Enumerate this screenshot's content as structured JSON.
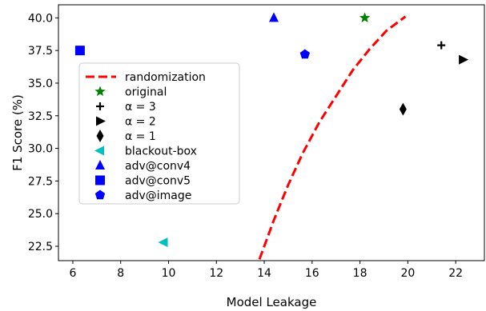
{
  "chart_data": {
    "type": "scatter",
    "xlabel": "Model Leakage",
    "ylabel": "F1 Score (%)",
    "xlim": [
      5.4,
      23.2
    ],
    "ylim": [
      21.4,
      41.0
    ],
    "xticks": [
      6,
      8,
      10,
      12,
      14,
      16,
      18,
      20,
      22
    ],
    "yticks": [
      22.5,
      25.0,
      27.5,
      30.0,
      32.5,
      35.0,
      37.5,
      40.0
    ],
    "xtick_labels": [
      "6",
      "8",
      "10",
      "12",
      "14",
      "16",
      "18",
      "20",
      "22"
    ],
    "ytick_labels": [
      "22.5",
      "25.0",
      "27.5",
      "30.0",
      "32.5",
      "35.0",
      "37.5",
      "40.0"
    ],
    "grid": false,
    "legend_position": "center-left",
    "series": [
      {
        "name": "randomization",
        "kind": "line",
        "style": "dashed",
        "color": "#ff0000",
        "x": [
          13.8,
          14.4,
          15.0,
          15.6,
          16.3,
          17.0,
          17.7,
          18.4,
          19.1,
          19.9
        ],
        "y": [
          21.5,
          24.5,
          27.2,
          29.6,
          32.0,
          34.0,
          36.0,
          37.6,
          39.0,
          40.1
        ]
      },
      {
        "name": "original",
        "kind": "marker",
        "marker": "star",
        "color": "#008000",
        "x": [
          18.2
        ],
        "y": [
          40.0
        ]
      },
      {
        "name": "α = 3",
        "kind": "marker",
        "marker": "plus",
        "color": "#000000",
        "x": [
          21.4
        ],
        "y": [
          37.9
        ]
      },
      {
        "name": "α = 2",
        "kind": "marker",
        "marker": "triangle-right",
        "color": "#000000",
        "x": [
          22.3
        ],
        "y": [
          36.8
        ]
      },
      {
        "name": "α = 1",
        "kind": "marker",
        "marker": "thin-diamond",
        "color": "#000000",
        "x": [
          19.8
        ],
        "y": [
          33.0
        ]
      },
      {
        "name": "blackout-box",
        "kind": "marker",
        "marker": "triangle-left",
        "color": "#00bfbf",
        "x": [
          9.8
        ],
        "y": [
          22.8
        ]
      },
      {
        "name": "adv@conv4",
        "kind": "marker",
        "marker": "triangle-up",
        "color": "#0000ff",
        "x": [
          14.4
        ],
        "y": [
          40.0
        ]
      },
      {
        "name": "adv@conv5",
        "kind": "marker",
        "marker": "square",
        "color": "#0000ff",
        "x": [
          6.3
        ],
        "y": [
          37.5
        ]
      },
      {
        "name": "adv@image",
        "kind": "marker",
        "marker": "pentagon",
        "color": "#0000ff",
        "x": [
          15.7
        ],
        "y": [
          37.2
        ]
      }
    ]
  }
}
